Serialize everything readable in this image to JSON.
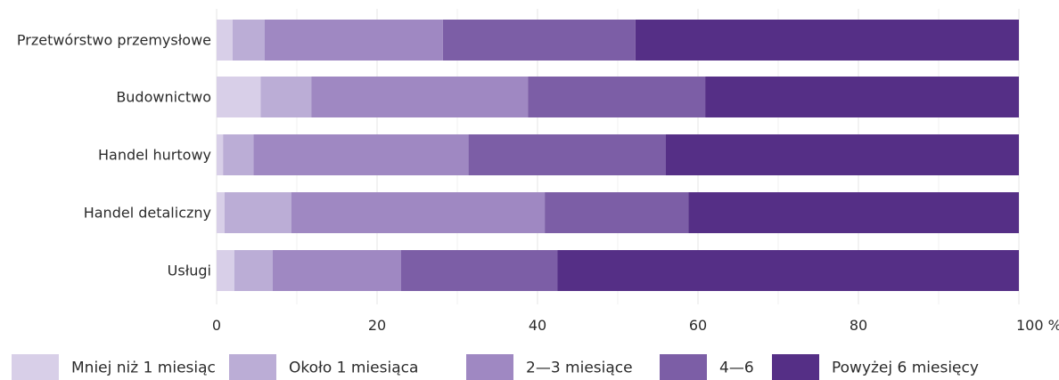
{
  "chart_data": {
    "type": "bar",
    "orientation": "horizontal",
    "stacked": true,
    "categories": [
      "Przetwórstwo przemysłowe",
      "Budownictwo",
      "Handel hurtowy",
      "Handel detaliczny",
      "Usługi"
    ],
    "series": [
      {
        "name": "Mniej niż 1 miesiąc",
        "color": "#d8cfe8",
        "values": [
          2.0,
          5.5,
          0.8,
          1.0,
          2.2
        ]
      },
      {
        "name": "Około 1 miesiąca",
        "color": "#bbadd6",
        "values": [
          4.0,
          6.3,
          3.8,
          8.3,
          4.8
        ]
      },
      {
        "name": "2—3 miesiące",
        "color": "#9f88c2",
        "values": [
          22.2,
          27.0,
          26.8,
          31.6,
          16.0
        ]
      },
      {
        "name": "4—6",
        "color": "#7c5ea6",
        "values": [
          24.0,
          22.1,
          24.6,
          17.9,
          19.5
        ]
      },
      {
        "name": "Powyżej 6 miesięcy",
        "color": "#552f86",
        "values": [
          47.8,
          39.1,
          44.0,
          41.2,
          57.5
        ]
      }
    ],
    "xlim": [
      0,
      100
    ],
    "xticks": [
      0,
      20,
      40,
      60,
      80,
      100
    ],
    "xtick_labels": [
      "0",
      "20",
      "40",
      "60",
      "80",
      "100 %"
    ],
    "grid": true,
    "legend": "bottom",
    "title": "",
    "xlabel": "",
    "ylabel": ""
  }
}
